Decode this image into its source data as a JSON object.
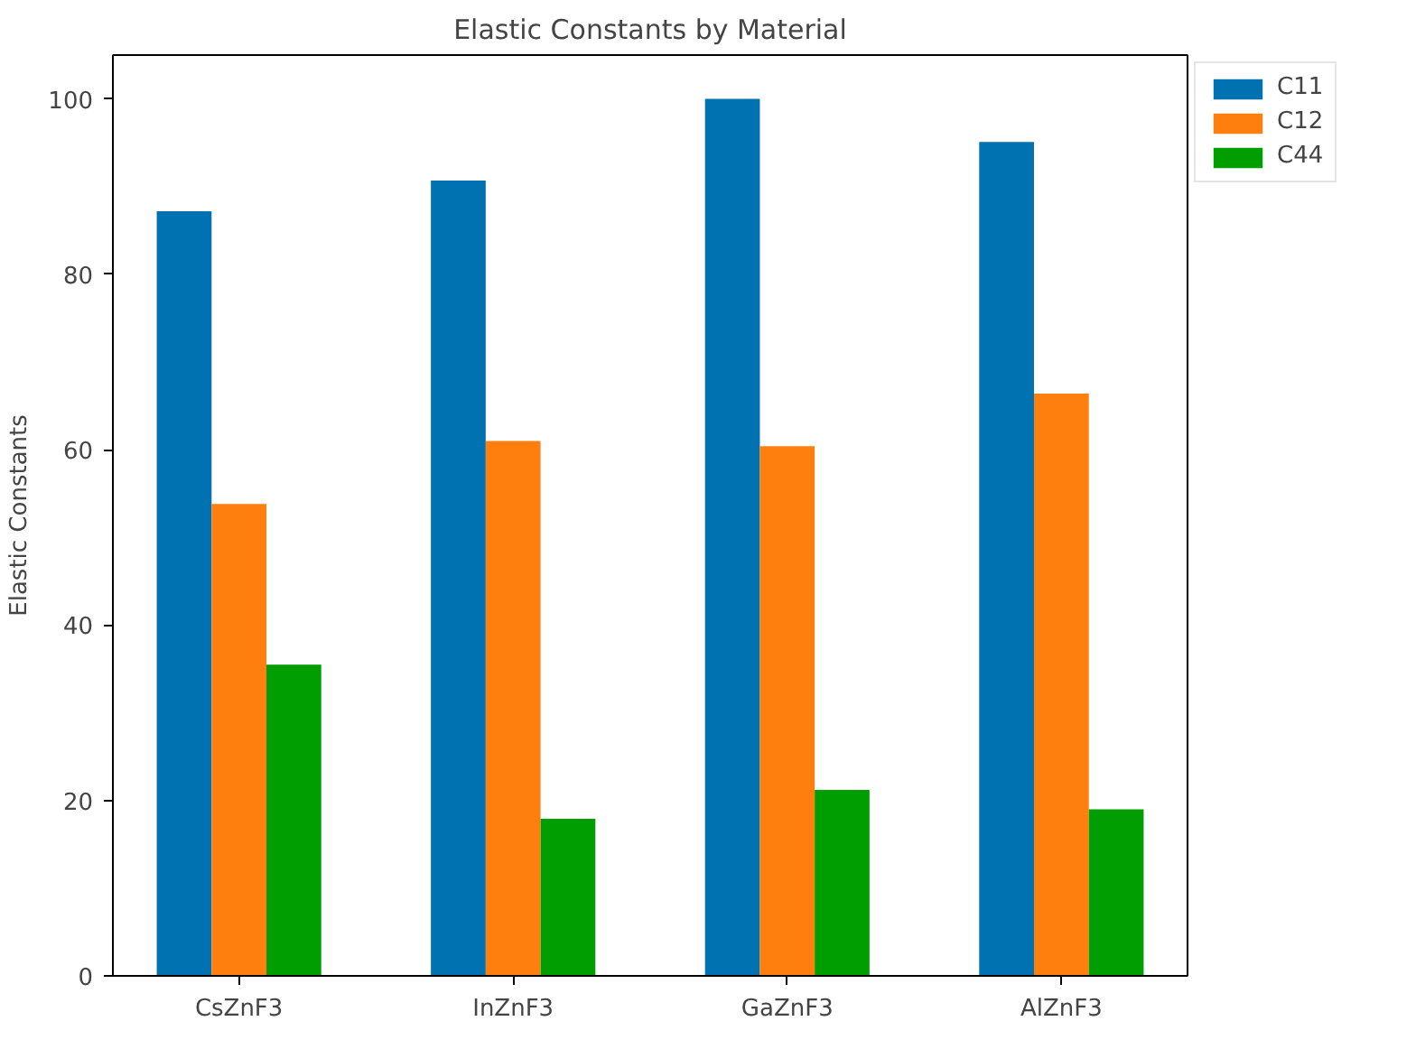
{
  "chart_data": {
    "type": "bar",
    "title": "Elastic Constants by Material",
    "ylabel": "Elastic Constants",
    "categories": [
      "CsZnF3",
      "InZnF3",
      "GaZnF3",
      "AlZnF3"
    ],
    "series": [
      {
        "name": "C11",
        "color": "#0072b2",
        "values": [
          87.2,
          90.7,
          100,
          95.1
        ]
      },
      {
        "name": "C12",
        "color": "#ff7f0e",
        "values": [
          53.8,
          61,
          60.4,
          66.4
        ]
      },
      {
        "name": "C44",
        "color": "#009e00",
        "values": [
          35.5,
          17.9,
          21.2,
          19.0
        ]
      }
    ],
    "ylim": [
      0,
      105
    ],
    "yticks": [
      0,
      20,
      40,
      60,
      80,
      100
    ],
    "grid": false,
    "legend": "top right"
  }
}
